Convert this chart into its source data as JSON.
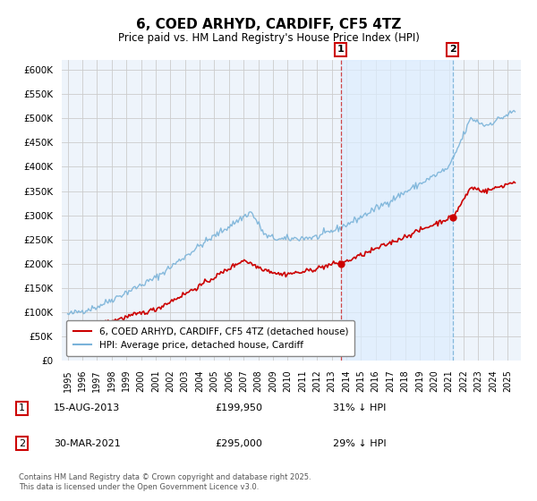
{
  "title": "6, COED ARHYD, CARDIFF, CF5 4TZ",
  "subtitle": "Price paid vs. HM Land Registry's House Price Index (HPI)",
  "ylim": [
    0,
    600000
  ],
  "yticks": [
    0,
    50000,
    100000,
    150000,
    200000,
    250000,
    300000,
    350000,
    400000,
    450000,
    500000,
    550000,
    600000
  ],
  "hpi_color": "#7ab3d9",
  "sale_color": "#cc0000",
  "dashed_line1_color": "#cc3333",
  "dashed_line2_color": "#7ab3d9",
  "annotation_box_color": "#cc0000",
  "shade_color": "#ddeeff",
  "legend_label_sale": "6, COED ARHYD, CARDIFF, CF5 4TZ (detached house)",
  "legend_label_hpi": "HPI: Average price, detached house, Cardiff",
  "note1_date": "15-AUG-2013",
  "note1_price": "£199,950",
  "note1_hpi": "31% ↓ HPI",
  "note2_date": "30-MAR-2021",
  "note2_price": "£295,000",
  "note2_hpi": "29% ↓ HPI",
  "footer": "Contains HM Land Registry data © Crown copyright and database right 2025.\nThis data is licensed under the Open Government Licence v3.0.",
  "sale1_year": 2013.625,
  "sale2_year": 2021.25,
  "sale1_price": 199950,
  "sale2_price": 295000,
  "background_color": "#eef4fb",
  "plot_bg_color": "#ffffff",
  "grid_color": "#cccccc"
}
